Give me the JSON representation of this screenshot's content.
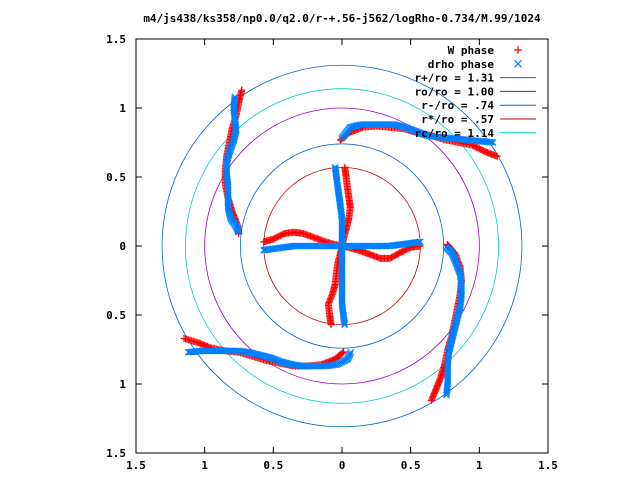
{
  "chart_data": {
    "type": "scatter",
    "title": "m4/js438/ks358/np0.0/q2.0/r-+.56-j562/logRho-0.734/M.99/1024",
    "xlim": [
      -1.5,
      1.5
    ],
    "ylim": [
      -1.5,
      1.5
    ],
    "x_tick_labels": [
      "1.5",
      "1",
      "0.5",
      "0",
      "0.5",
      "1",
      "1.5"
    ],
    "y_tick_labels": [
      "1.5",
      "1",
      "0.5",
      "0",
      "0.5",
      "1",
      "1.5"
    ],
    "tick_values": [
      -1.5,
      -1,
      -0.5,
      0,
      0.5,
      1,
      1.5
    ],
    "legend_position": "top-right",
    "grid": false,
    "series": [
      {
        "name": "W phase",
        "marker": "+",
        "color": "#ff0000",
        "arms": [
          [
            [
              0.57,
              0.0
            ],
            [
              0.5,
              -0.01
            ],
            [
              0.42,
              -0.05
            ],
            [
              0.35,
              -0.09
            ],
            [
              0.28,
              -0.09
            ],
            [
              0.2,
              -0.06
            ],
            [
              0.12,
              -0.03
            ],
            [
              0.05,
              -0.01
            ],
            [
              0.0,
              0.0
            ]
          ],
          [
            [
              -0.57,
              0.03
            ],
            [
              -0.5,
              0.05
            ],
            [
              -0.42,
              0.09
            ],
            [
              -0.35,
              0.1
            ],
            [
              -0.28,
              0.09
            ],
            [
              -0.2,
              0.06
            ],
            [
              -0.12,
              0.03
            ],
            [
              -0.05,
              0.01
            ],
            [
              0.0,
              0.0
            ]
          ],
          [
            [
              0.02,
              0.57
            ],
            [
              0.03,
              0.5
            ],
            [
              0.04,
              0.42
            ],
            [
              0.05,
              0.35
            ],
            [
              0.06,
              0.28
            ],
            [
              0.05,
              0.2
            ],
            [
              0.03,
              0.12
            ],
            [
              0.01,
              0.05
            ],
            [
              0.0,
              0.0
            ]
          ],
          [
            [
              -0.08,
              -0.57
            ],
            [
              -0.09,
              -0.5
            ],
            [
              -0.1,
              -0.42
            ],
            [
              -0.07,
              -0.35
            ],
            [
              -0.05,
              -0.28
            ],
            [
              -0.04,
              -0.2
            ],
            [
              -0.03,
              -0.12
            ],
            [
              -0.01,
              -0.05
            ],
            [
              0.0,
              0.0
            ]
          ],
          [
            [
              -0.73,
              1.13
            ],
            [
              -0.75,
              1.05
            ],
            [
              -0.77,
              0.95
            ],
            [
              -0.8,
              0.85
            ],
            [
              -0.82,
              0.75
            ],
            [
              -0.84,
              0.65
            ],
            [
              -0.85,
              0.55
            ],
            [
              -0.85,
              0.45
            ],
            [
              -0.83,
              0.35
            ],
            [
              -0.8,
              0.25
            ],
            [
              -0.76,
              0.15
            ],
            [
              -0.75,
              0.08
            ]
          ],
          [
            [
              1.13,
              0.65
            ],
            [
              1.05,
              0.68
            ],
            [
              0.95,
              0.73
            ],
            [
              0.85,
              0.75
            ],
            [
              0.75,
              0.77
            ],
            [
              0.65,
              0.8
            ],
            [
              0.55,
              0.82
            ],
            [
              0.45,
              0.85
            ],
            [
              0.35,
              0.86
            ],
            [
              0.25,
              0.87
            ],
            [
              0.15,
              0.86
            ],
            [
              0.05,
              0.82
            ],
            [
              -0.02,
              0.76
            ]
          ],
          [
            [
              0.65,
              -1.12
            ],
            [
              0.68,
              -1.05
            ],
            [
              0.72,
              -0.95
            ],
            [
              0.75,
              -0.85
            ],
            [
              0.77,
              -0.75
            ],
            [
              0.8,
              -0.65
            ],
            [
              0.82,
              -0.55
            ],
            [
              0.84,
              -0.45
            ],
            [
              0.86,
              -0.35
            ],
            [
              0.87,
              -0.25
            ],
            [
              0.86,
              -0.15
            ],
            [
              0.82,
              -0.05
            ],
            [
              0.76,
              0.02
            ]
          ],
          [
            [
              -1.15,
              -0.67
            ],
            [
              -1.05,
              -0.7
            ],
            [
              -0.95,
              -0.74
            ],
            [
              -0.85,
              -0.76
            ],
            [
              -0.75,
              -0.77
            ],
            [
              -0.65,
              -0.8
            ],
            [
              -0.55,
              -0.83
            ],
            [
              -0.45,
              -0.85
            ],
            [
              -0.35,
              -0.87
            ],
            [
              -0.25,
              -0.87
            ],
            [
              -0.15,
              -0.86
            ],
            [
              -0.05,
              -0.82
            ],
            [
              0.02,
              -0.76
            ]
          ]
        ]
      },
      {
        "name": "drho phase",
        "marker": "x",
        "color": "#0080ff",
        "arms": [
          [
            [
              0.57,
              0.03
            ],
            [
              0.5,
              0.02
            ],
            [
              0.42,
              0.01
            ],
            [
              0.35,
              0.0
            ],
            [
              0.28,
              0.0
            ],
            [
              0.2,
              0.0
            ],
            [
              0.12,
              0.0
            ],
            [
              0.05,
              0.0
            ],
            [
              0.0,
              0.0
            ]
          ],
          [
            [
              -0.57,
              -0.03
            ],
            [
              -0.5,
              -0.02
            ],
            [
              -0.42,
              -0.01
            ],
            [
              -0.35,
              0.0
            ],
            [
              -0.28,
              0.0
            ],
            [
              -0.2,
              0.0
            ],
            [
              -0.12,
              0.0
            ],
            [
              -0.05,
              0.0
            ],
            [
              0.0,
              0.0
            ]
          ],
          [
            [
              -0.05,
              0.57
            ],
            [
              -0.04,
              0.5
            ],
            [
              -0.03,
              0.42
            ],
            [
              -0.02,
              0.35
            ],
            [
              -0.01,
              0.28
            ],
            [
              0.0,
              0.2
            ],
            [
              0.0,
              0.12
            ],
            [
              0.0,
              0.05
            ],
            [
              0.0,
              0.0
            ]
          ],
          [
            [
              0.02,
              -0.57
            ],
            [
              0.01,
              -0.5
            ],
            [
              0.0,
              -0.42
            ],
            [
              0.0,
              -0.35
            ],
            [
              0.0,
              -0.28
            ],
            [
              0.0,
              -0.2
            ],
            [
              0.0,
              -0.12
            ],
            [
              0.0,
              -0.05
            ],
            [
              0.0,
              0.0
            ]
          ],
          [
            [
              -0.78,
              1.08
            ],
            [
              -0.79,
              1.0
            ],
            [
              -0.78,
              0.92
            ],
            [
              -0.77,
              0.84
            ],
            [
              -0.79,
              0.76
            ],
            [
              -0.82,
              0.68
            ],
            [
              -0.84,
              0.6
            ],
            [
              -0.84,
              0.52
            ],
            [
              -0.83,
              0.44
            ],
            [
              -0.83,
              0.36
            ],
            [
              -0.83,
              0.28
            ],
            [
              -0.81,
              0.2
            ],
            [
              -0.77,
              0.14
            ],
            [
              -0.75,
              0.09
            ]
          ],
          [
            [
              1.1,
              0.75
            ],
            [
              1.0,
              0.76
            ],
            [
              0.9,
              0.77
            ],
            [
              0.8,
              0.78
            ],
            [
              0.7,
              0.79
            ],
            [
              0.62,
              0.8
            ],
            [
              0.54,
              0.83
            ],
            [
              0.46,
              0.86
            ],
            [
              0.38,
              0.88
            ],
            [
              0.3,
              0.88
            ],
            [
              0.22,
              0.88
            ],
            [
              0.14,
              0.88
            ],
            [
              0.06,
              0.86
            ],
            [
              -0.01,
              0.77
            ]
          ],
          [
            [
              0.76,
              -1.08
            ],
            [
              0.77,
              -1.0
            ],
            [
              0.77,
              -0.92
            ],
            [
              0.77,
              -0.84
            ],
            [
              0.78,
              -0.76
            ],
            [
              0.8,
              -0.68
            ],
            [
              0.82,
              -0.6
            ],
            [
              0.84,
              -0.52
            ],
            [
              0.86,
              -0.44
            ],
            [
              0.87,
              -0.36
            ],
            [
              0.87,
              -0.28
            ],
            [
              0.86,
              -0.2
            ],
            [
              0.83,
              -0.12
            ],
            [
              0.8,
              -0.05
            ],
            [
              0.75,
              0.0
            ]
          ],
          [
            [
              -1.12,
              -0.77
            ],
            [
              -1.02,
              -0.76
            ],
            [
              -0.92,
              -0.76
            ],
            [
              -0.84,
              -0.76
            ],
            [
              -0.76,
              -0.76
            ],
            [
              -0.68,
              -0.77
            ],
            [
              -0.6,
              -0.79
            ],
            [
              -0.52,
              -0.81
            ],
            [
              -0.44,
              -0.84
            ],
            [
              -0.36,
              -0.86
            ],
            [
              -0.28,
              -0.87
            ],
            [
              -0.2,
              -0.87
            ],
            [
              -0.12,
              -0.87
            ],
            [
              -0.04,
              -0.86
            ],
            [
              0.04,
              -0.82
            ],
            [
              0.07,
              -0.76
            ]
          ]
        ]
      }
    ],
    "circles": [
      {
        "name": "r+/ro = 1.31",
        "r": 1.31,
        "color": "#0066cc"
      },
      {
        "name": "ro/ro = 1.00",
        "r": 1.0,
        "color": "#9900cc"
      },
      {
        "name": "r-/ro = .74",
        "r": 0.74,
        "color": "#0066cc"
      },
      {
        "name": "r*/ro = .57",
        "r": 0.57,
        "color": "#cc0000"
      },
      {
        "name": "rc/ro = 1.14",
        "r": 1.14,
        "color": "#00cccc"
      }
    ]
  }
}
